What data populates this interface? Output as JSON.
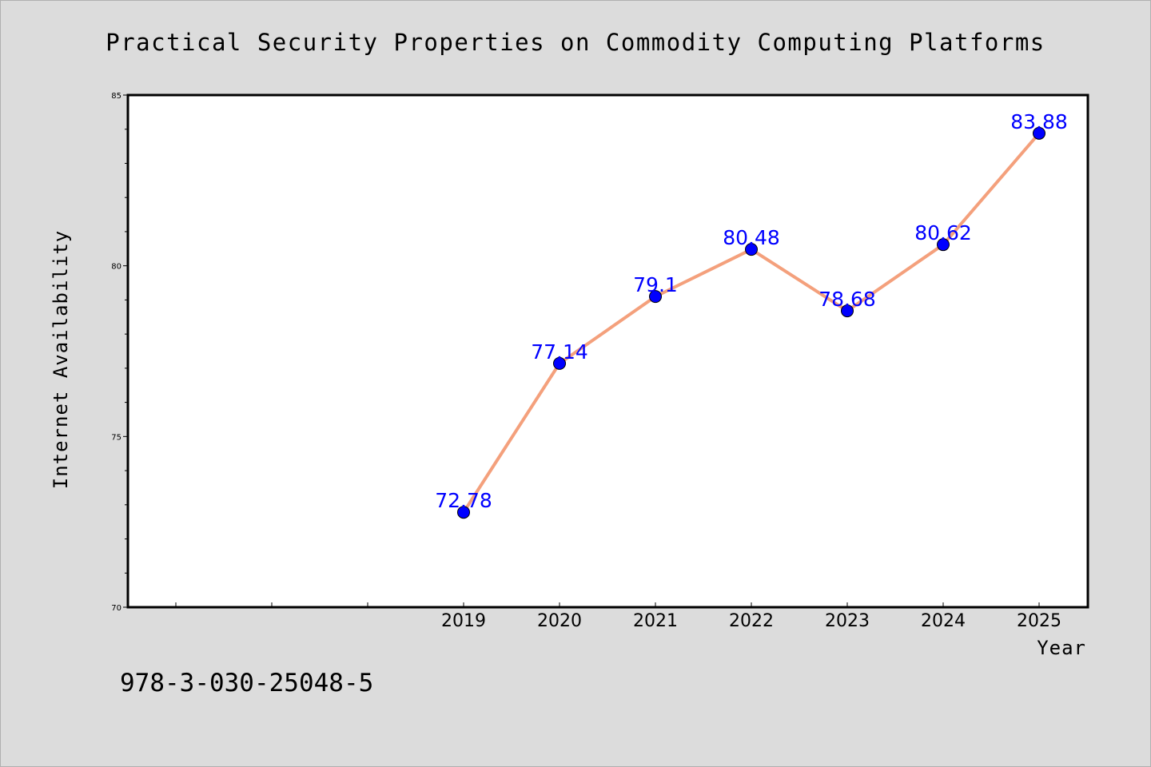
{
  "chart_data": {
    "type": "line",
    "title": "Practical Security Properties on Commodity Computing Platforms",
    "xlabel": "Year",
    "ylabel": "Internet Availability",
    "x": [
      "2019",
      "2020",
      "2021",
      "2022",
      "2023",
      "2024",
      "2025"
    ],
    "series": [
      {
        "values": [
          72.78,
          77.14,
          79.1,
          80.48,
          78.68,
          80.62,
          83.88
        ],
        "labels": [
          "72.78",
          "77.14",
          "79.1",
          "80.48",
          "78.68",
          "80.62",
          "83.88"
        ]
      }
    ],
    "ylim": [
      70,
      85
    ],
    "yticks": [
      "70",
      "75",
      "80",
      "85"
    ],
    "grid": false,
    "legend": "none",
    "line_color": "#f4a07c",
    "marker_color": "#0000ff",
    "label_color": "#0000ff"
  },
  "footnote": "978-3-030-25048-5"
}
